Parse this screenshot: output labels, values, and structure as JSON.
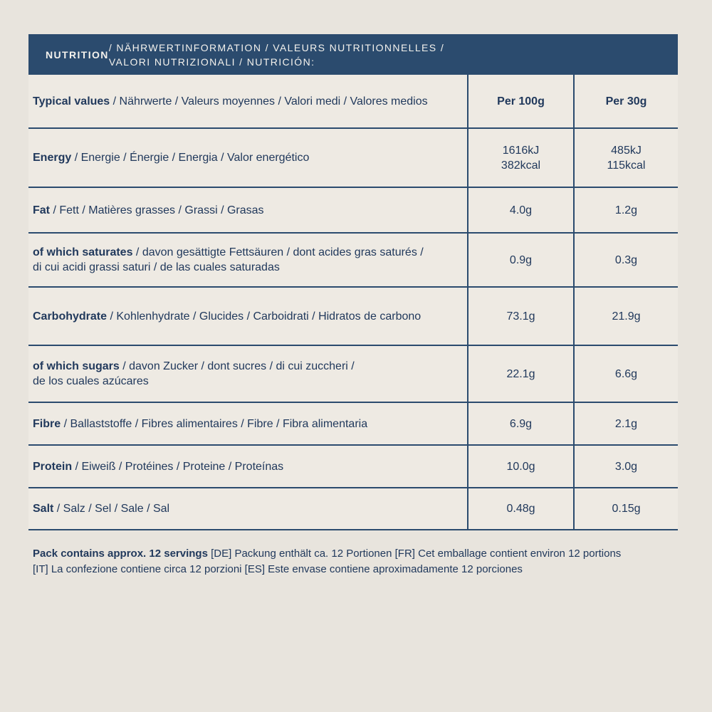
{
  "colors": {
    "page_background": "#e8e4dd",
    "table_background": "#eeeae3",
    "accent_navy": "#2b4b6e",
    "text_navy": "#21395c",
    "title_text": "#f4f2ed"
  },
  "title_bar": {
    "term": "NUTRITION",
    "rest": " / NÄHRWERTINFORMATION / VALEURS NUTRITIONNELLES /\nVALORI NUTRIZIONALI / NUTRICIÓN:"
  },
  "column_header": {
    "term": "Typical values",
    "rest": " / Nährwerte / Valeurs moyennes / Valori medi / Valores medios",
    "per100_label": "Per 100g",
    "per30_label": "Per 30g"
  },
  "rows": [
    {
      "term": "Energy",
      "rest": " / Energie / Énergie / Energia / Valor energético",
      "per100": "1616kJ\n382kcal",
      "per30": "485kJ\n115kcal"
    },
    {
      "term": "Fat",
      "rest": " / Fett / Matières grasses / Grassi / Grasas",
      "per100": "4.0g",
      "per30": "1.2g"
    },
    {
      "term": "of which saturates",
      "rest": " / davon gesättigte Fettsäuren / dont acides gras saturés /\ndi cui acidi grassi saturi / de las cuales saturadas",
      "per100": "0.9g",
      "per30": "0.3g"
    },
    {
      "term": "Carbohydrate",
      "rest": " / Kohlenhydrate / Glucides / Carboidrati / Hidratos de carbono",
      "per100": "73.1g",
      "per30": "21.9g"
    },
    {
      "term": "of which sugars",
      "rest": " / davon Zucker / dont sucres / di cui zuccheri /\nde los cuales azúcares",
      "per100": "22.1g",
      "per30": "6.6g"
    },
    {
      "term": "Fibre",
      "rest": " / Ballaststoffe / Fibres alimentaires / Fibre / Fibra alimentaria",
      "per100": "6.9g",
      "per30": "2.1g"
    },
    {
      "term": "Protein",
      "rest": " / Eiweiß / Protéines / Proteine / Proteínas",
      "per100": "10.0g",
      "per30": "3.0g"
    },
    {
      "term": "Salt",
      "rest": " / Salz / Sel / Sale / Sal",
      "per100": "0.48g",
      "per30": "0.15g"
    }
  ],
  "footer": {
    "term": "Pack contains approx. 12 servings",
    "rest": " [DE] Packung enthält ca. 12 Portionen [FR] Cet emballage contient environ 12 portions\n[IT] La confezione contiene circa 12 porzioni [ES] Este envase contiene aproximadamente 12 porciones"
  }
}
